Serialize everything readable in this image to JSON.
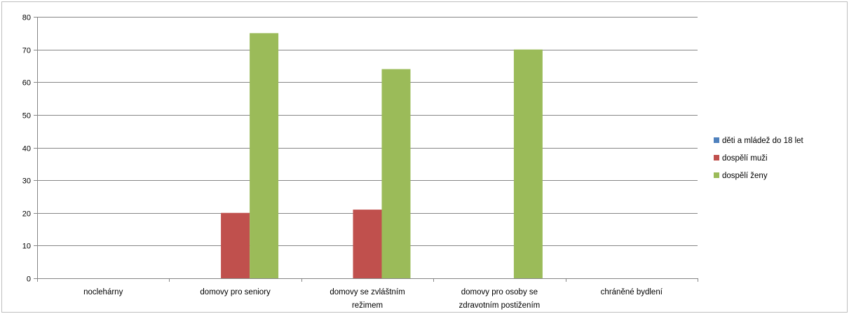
{
  "chart_data": {
    "type": "bar",
    "title": "",
    "xlabel": "",
    "ylabel": "",
    "ylim": [
      0,
      80
    ],
    "yticks": [
      0,
      10,
      20,
      30,
      40,
      50,
      60,
      70,
      80
    ],
    "grid": true,
    "legend_position": "right",
    "categories": [
      [
        "noclehárny"
      ],
      [
        "domovy pro seniory"
      ],
      [
        "domovy se zvláštním",
        "režimem"
      ],
      [
        "domovy pro osoby se",
        "zdravotním postižením"
      ],
      [
        "chráněné bydlení"
      ]
    ],
    "series": [
      {
        "name": "děti a mládež do 18 let",
        "color": "#4F81BD",
        "values": [
          0,
          0,
          0,
          0,
          0
        ]
      },
      {
        "name": "dospělí muži",
        "color": "#C0504D",
        "values": [
          0,
          20,
          21,
          0,
          0
        ]
      },
      {
        "name": "dospělí ženy",
        "color": "#9BBB59",
        "values": [
          0,
          75,
          64,
          70,
          0
        ]
      }
    ]
  }
}
